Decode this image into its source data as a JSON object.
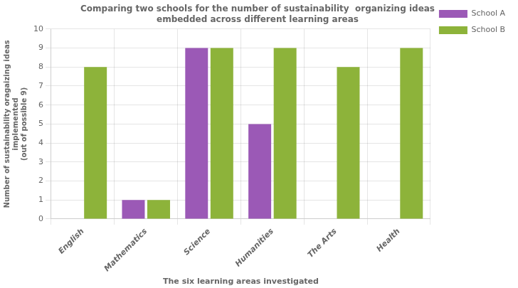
{
  "chart_data": {
    "type": "bar",
    "title": [
      "Comparing two schools for the number of sustainability  organizing ideas",
      "embedded across different learning areas"
    ],
    "categories": [
      "English",
      "Mathematics",
      "Science",
      "Humanities",
      "The Arts",
      "Health"
    ],
    "series": [
      {
        "name": "School A",
        "color": "#9b59b6",
        "values": [
          0,
          1,
          9,
          5,
          0,
          0
        ]
      },
      {
        "name": "School B",
        "color": "#8db33a",
        "values": [
          8,
          1,
          9,
          9,
          8,
          9
        ]
      }
    ],
    "xlabel": "The six learning areas investigated",
    "ylabel": [
      "Number of sustainability oragaizing ideas",
      "implemented",
      "(out of possible 9)"
    ],
    "ylim": [
      0,
      10
    ],
    "yticks": [
      0,
      1,
      2,
      3,
      4,
      5,
      6,
      7,
      8,
      9,
      10
    ],
    "grid": true,
    "legend": "right"
  }
}
